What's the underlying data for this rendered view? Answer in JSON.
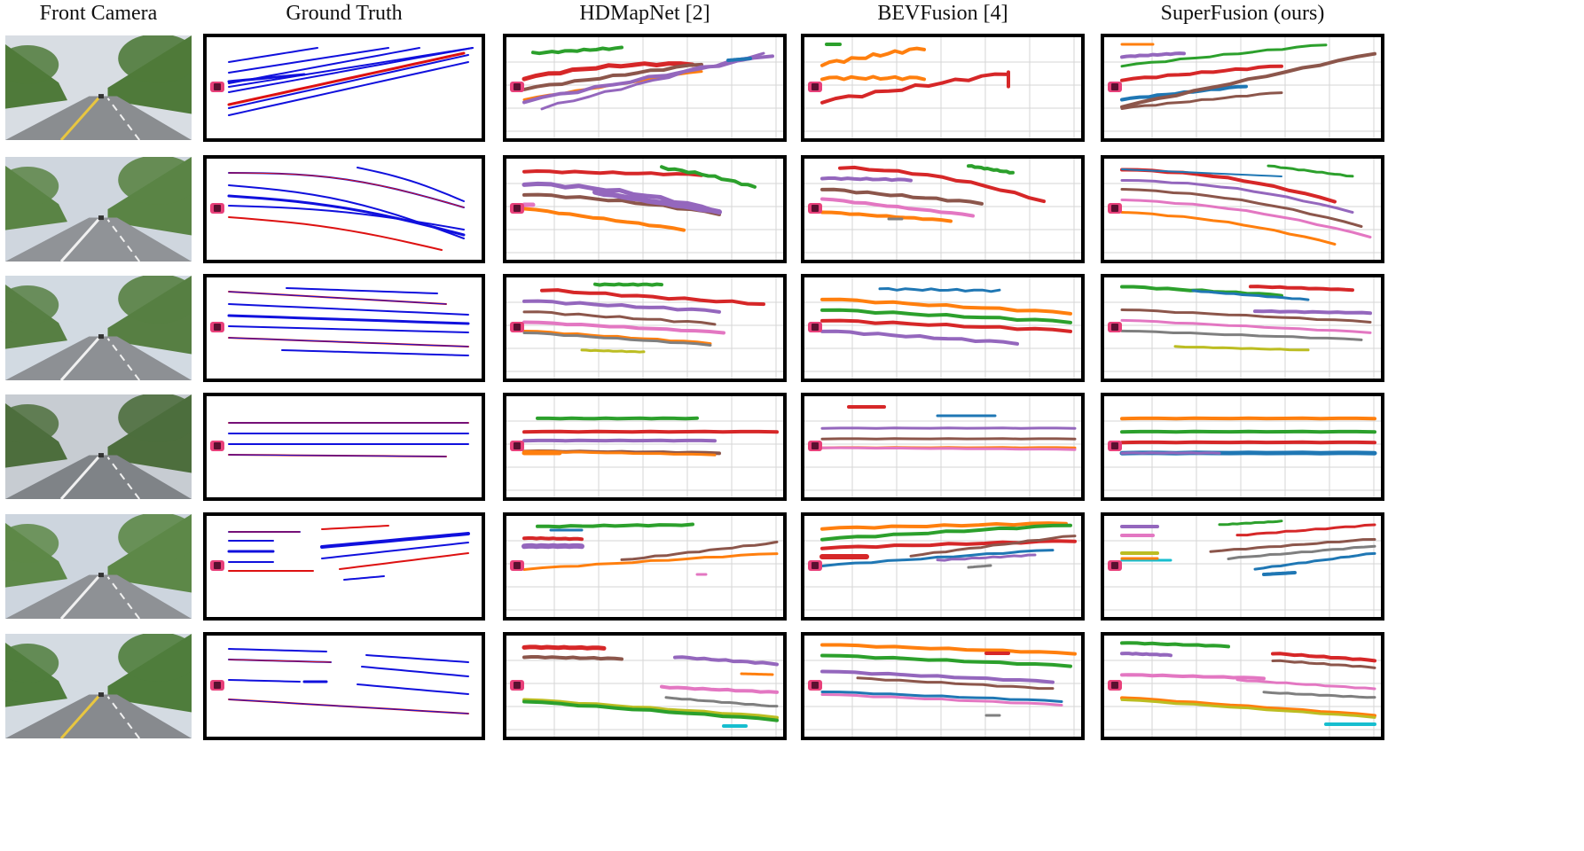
{
  "columns": {
    "camera": "Front Camera",
    "gt": "Ground Truth",
    "hdmapnet": "HDMapNet [2]",
    "bevfusion": "BEVFusion [4]",
    "superfusion": "SuperFusion (ours)"
  },
  "colors": {
    "gt_blue": "#1010dd",
    "gt_red": "#dd1111",
    "green": "#2ca02c",
    "red": "#d62728",
    "brown": "#8c564b",
    "orange": "#ff7f0e",
    "purple": "#9467bd",
    "blue": "#1f77b4",
    "pink": "#e377c2",
    "gray": "#7f7f7f",
    "olive": "#bcbd22",
    "cyan": "#17becf",
    "ego_car": "#e8407a"
  },
  "scenes": [
    {
      "id": 1,
      "sky": "#d8dde3",
      "trees": "#4f7a3a",
      "road": "#8a8d90",
      "marking": "#e8c640"
    },
    {
      "id": 2,
      "sky": "#cfd6de",
      "trees": "#5a8445",
      "road": "#909397",
      "marking": "#f0f0f0"
    },
    {
      "id": 3,
      "sky": "#d2dae2",
      "trees": "#577f43",
      "road": "#8d9094",
      "marking": "#f0f0f0"
    },
    {
      "id": 4,
      "sky": "#c7ccd2",
      "trees": "#4d6e3d",
      "road": "#7f8387",
      "marking": "#f0f0f0"
    },
    {
      "id": 5,
      "sky": "#cdd5de",
      "trees": "#5d8848",
      "road": "#8e9195",
      "marking": "#f0f0f0"
    },
    {
      "id": 6,
      "sky": "#d4dbe2",
      "trees": "#4f7d3c",
      "road": "#878a8e",
      "marking": "#e8c640"
    }
  ]
}
